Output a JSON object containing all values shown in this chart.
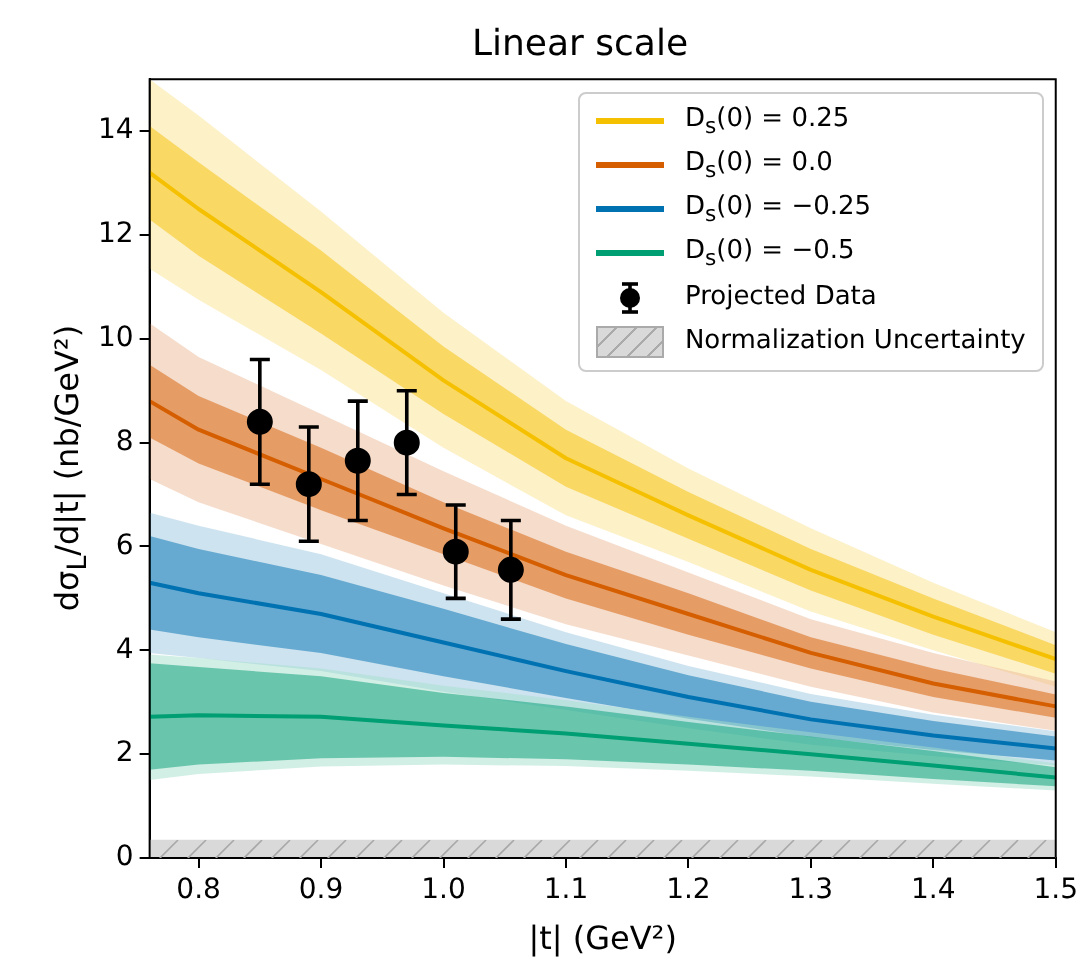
{
  "chart_data": {
    "type": "line",
    "title": "Linear scale",
    "xlabel": "|t| (GeV²)",
    "ylabel": "dσ$_{L}$/d|t| (nb/GeV²)",
    "x": [
      0.76,
      0.8,
      0.9,
      1.0,
      1.1,
      1.2,
      1.3,
      1.4,
      1.5
    ],
    "xlim": [
      0.76,
      1.5
    ],
    "xticks": [
      0.8,
      0.9,
      {
        "value": 1,
        "label": "1.0"
      },
      1.1,
      1.2,
      1.3,
      1.4,
      1.5
    ],
    "ylim": [
      0,
      15
    ],
    "yticks": [
      0,
      2,
      4,
      6,
      8,
      10,
      12,
      14
    ],
    "legend": "top right",
    "marker": "none",
    "line_style": "solid",
    "series": [
      {
        "color": "#fbe391",
        "values": [
          null,
          null,
          null,
          null,
          null,
          null,
          null,
          null,
          null
        ],
        "lower": [
          11.35,
          10.75,
          9.4,
          7.9,
          6.6,
          5.7,
          4.75,
          4.0,
          3.3
        ],
        "upper": [
          15.0,
          14.3,
          12.45,
          10.5,
          8.8,
          7.5,
          6.35,
          5.3,
          4.35
        ]
      },
      {
        "name": "D$_{s}$(0) = 0.25",
        "color": "#f5c000",
        "values": [
          13.2,
          12.5,
          10.9,
          9.2,
          7.7,
          6.6,
          5.55,
          4.65,
          3.83
        ],
        "lower": [
          12.3,
          11.6,
          10.1,
          8.55,
          7.15,
          6.15,
          5.15,
          4.3,
          3.55
        ],
        "upper": [
          14.1,
          13.4,
          11.7,
          9.85,
          8.25,
          7.05,
          5.95,
          5.0,
          4.1
        ]
      },
      {
        "color": "#edb997",
        "values": [
          null,
          null,
          null,
          null,
          null,
          null,
          null,
          null,
          null
        ],
        "lower": [
          7.3,
          6.85,
          6.05,
          5.25,
          4.5,
          3.9,
          3.3,
          2.8,
          2.45
        ],
        "upper": [
          10.3,
          9.65,
          8.55,
          7.45,
          6.4,
          5.5,
          4.6,
          3.95,
          3.4
        ]
      },
      {
        "name": "D$_{s}$(0) = 0.0",
        "color": "#d55e00",
        "values": [
          8.8,
          8.25,
          7.3,
          6.35,
          5.45,
          4.7,
          3.95,
          3.36,
          2.92
        ],
        "lower": [
          8.1,
          7.6,
          6.7,
          5.85,
          5.0,
          4.3,
          3.65,
          3.1,
          2.7
        ],
        "upper": [
          9.5,
          8.9,
          7.9,
          6.85,
          5.9,
          5.1,
          4.25,
          3.65,
          3.15
        ]
      },
      {
        "color": "#9bc7e1",
        "values": [
          null,
          null,
          null,
          null,
          null,
          null,
          null,
          null,
          null
        ],
        "lower": [
          3.95,
          3.85,
          3.6,
          3.2,
          2.85,
          2.5,
          2.18,
          1.96,
          1.78
        ],
        "upper": [
          6.65,
          6.4,
          5.85,
          5.1,
          4.35,
          3.7,
          3.16,
          2.76,
          2.44
        ]
      },
      {
        "name": "D$_{s}$(0) = −0.25",
        "color": "#0072b2",
        "values": [
          5.3,
          5.1,
          4.7,
          4.15,
          3.6,
          3.1,
          2.67,
          2.36,
          2.11
        ],
        "lower": [
          4.4,
          4.25,
          3.95,
          3.5,
          3.08,
          2.68,
          2.33,
          2.08,
          1.88
        ],
        "upper": [
          6.2,
          5.95,
          5.45,
          4.8,
          4.12,
          3.52,
          3.01,
          2.64,
          2.34
        ]
      },
      {
        "color": "#a5dfcb",
        "values": [
          null,
          null,
          null,
          null,
          null,
          null,
          null,
          null,
          null
        ],
        "lower": [
          1.5,
          1.62,
          1.76,
          1.8,
          1.77,
          1.68,
          1.57,
          1.43,
          1.3
        ],
        "upper": [
          3.92,
          3.85,
          3.65,
          3.32,
          3.04,
          2.72,
          2.42,
          2.13,
          1.82
        ]
      },
      {
        "name": "D$_{s}$(0) = −0.5",
        "color": "#009e73",
        "values": [
          2.72,
          2.75,
          2.72,
          2.55,
          2.4,
          2.2,
          2.0,
          1.78,
          1.55
        ],
        "lower": [
          1.7,
          1.8,
          1.92,
          1.95,
          1.9,
          1.8,
          1.68,
          1.52,
          1.38
        ],
        "upper": [
          3.75,
          3.68,
          3.5,
          3.18,
          2.92,
          2.62,
          2.34,
          2.06,
          1.75
        ]
      },
      {
        "name": "Projected Data",
        "type": "scatter",
        "marker": "circle",
        "color": "#000000",
        "x": [
          0.85,
          0.89,
          0.93,
          0.97,
          1.01,
          1.055
        ],
        "values": [
          8.4,
          7.2,
          7.65,
          8.0,
          5.9,
          5.55
        ],
        "errors": [
          [
            7.2,
            9.6
          ],
          [
            6.1,
            8.3
          ],
          [
            6.5,
            8.8
          ],
          [
            7.0,
            9.0
          ],
          [
            5.0,
            6.8
          ],
          [
            4.6,
            6.5
          ]
        ]
      }
    ],
    "bands": [
      {
        "axis": "y",
        "from": 0,
        "to": 0.35,
        "label": "Normalization Uncertainty",
        "color": "#d9d9d9"
      }
    ]
  }
}
